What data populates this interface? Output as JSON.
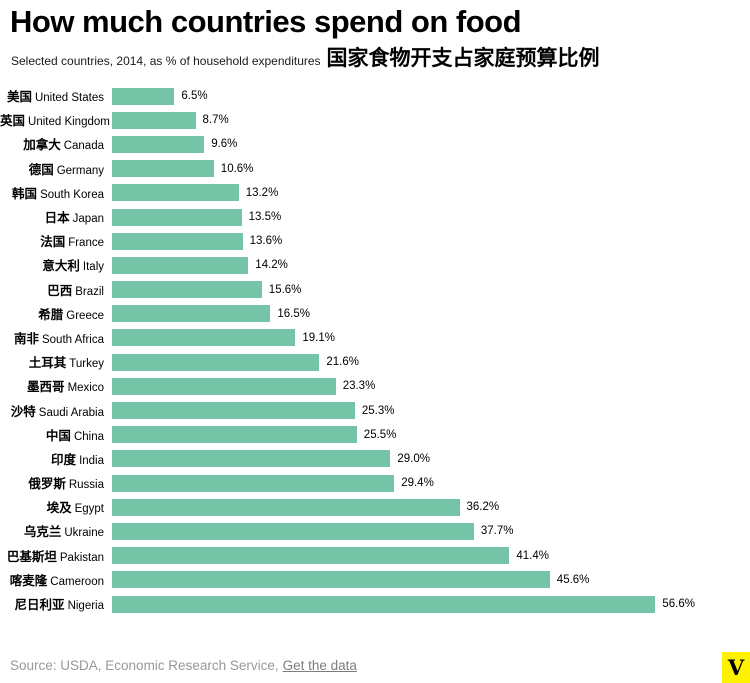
{
  "header": {
    "title": "How much countries spend on food",
    "subtitle_en": "Selected countries, 2014, as % of household expenditures",
    "subtitle_zh": "国家食物开支占家庭预算比例"
  },
  "chart_data": {
    "type": "bar",
    "orientation": "horizontal",
    "title": "How much countries spend on food",
    "subtitle": "Selected countries, 2014, as % of household expenditures",
    "subtitle_zh": "国家食物开支占家庭预算比例",
    "xlim": [
      0,
      60
    ],
    "grid": false,
    "legend": false,
    "bar_color": "#76c4a8",
    "value_suffix": "%",
    "categories": [
      {
        "zh": "美国",
        "en": "United States"
      },
      {
        "zh": "英国",
        "en": "United Kingdom"
      },
      {
        "zh": "加拿大",
        "en": "Canada"
      },
      {
        "zh": "德国",
        "en": "Germany"
      },
      {
        "zh": "韩国",
        "en": "South Korea"
      },
      {
        "zh": "日本",
        "en": "Japan"
      },
      {
        "zh": "法国",
        "en": "France"
      },
      {
        "zh": "意大利",
        "en": "Italy"
      },
      {
        "zh": "巴西",
        "en": "Brazil"
      },
      {
        "zh": "希腊",
        "en": "Greece"
      },
      {
        "zh": "南非",
        "en": "South Africa"
      },
      {
        "zh": "土耳其",
        "en": "Turkey"
      },
      {
        "zh": "墨西哥",
        "en": "Mexico"
      },
      {
        "zh": "沙特",
        "en": "Saudi Arabia"
      },
      {
        "zh": "中国",
        "en": "China"
      },
      {
        "zh": "印度",
        "en": "India"
      },
      {
        "zh": "俄罗斯",
        "en": "Russia"
      },
      {
        "zh": "埃及",
        "en": "Egypt"
      },
      {
        "zh": "乌克兰",
        "en": "Ukraine"
      },
      {
        "zh": "巴基斯坦",
        "en": "Pakistan"
      },
      {
        "zh": "喀麦隆",
        "en": "Cameroon"
      },
      {
        "zh": "尼日利亚",
        "en": "Nigeria"
      }
    ],
    "values": [
      6.5,
      8.7,
      9.6,
      10.6,
      13.2,
      13.5,
      13.6,
      14.2,
      15.6,
      16.5,
      19.1,
      21.6,
      23.3,
      25.3,
      25.5,
      29.0,
      29.4,
      36.2,
      37.7,
      41.4,
      45.6,
      56.6
    ]
  },
  "footer": {
    "source_text": "Source: USDA, Economic Research Service,",
    "link_label": "Get the data",
    "logo_letter": "V",
    "logo_bg": "#fff200"
  }
}
